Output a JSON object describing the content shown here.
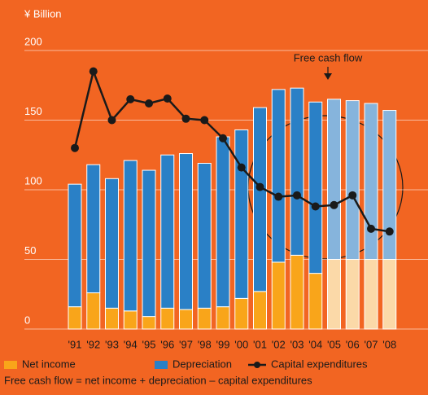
{
  "chart_data": {
    "type": "bar",
    "stacked": true,
    "y_axis_label": "¥ Billion",
    "categories": [
      "'91",
      "'92",
      "'93",
      "'94",
      "'95",
      "'96",
      "'97",
      "'98",
      "'99",
      "'00",
      "'01",
      "'02",
      "'03",
      "'04",
      "'05",
      "'06",
      "'07",
      "'08"
    ],
    "series": [
      {
        "name": "Net income",
        "color": "#f9a51a",
        "colors": [
          "#f9a51a",
          "#f9a51a",
          "#f9a51a",
          "#f9a51a",
          "#f9a51a",
          "#f9a51a",
          "#f9a51a",
          "#f9a51a",
          "#f9a51a",
          "#f9a51a",
          "#f9a51a",
          "#f9a51a",
          "#f9a51a",
          "#f9a51a",
          "#fbd9a8",
          "#fbd9a8",
          "#fbd9a8",
          "#fbd9a8"
        ],
        "values": [
          16,
          26,
          15,
          13,
          9,
          15,
          14,
          15,
          16,
          22,
          27,
          48,
          53,
          40,
          50,
          50,
          50,
          50
        ]
      },
      {
        "name": "Depreciation",
        "color": "#2a80c6",
        "colors": [
          "#2a80c6",
          "#2a80c6",
          "#2a80c6",
          "#2a80c6",
          "#2a80c6",
          "#2a80c6",
          "#2a80c6",
          "#2a80c6",
          "#2a80c6",
          "#2a80c6",
          "#2a80c6",
          "#2a80c6",
          "#2a80c6",
          "#2a80c6",
          "#86b4dc",
          "#86b4dc",
          "#86b4dc",
          "#86b4dc"
        ],
        "values": [
          88,
          92,
          93,
          108,
          105,
          110,
          112,
          104,
          122,
          121,
          132,
          124,
          120,
          123,
          115,
          114,
          112,
          107
        ]
      },
      {
        "name": "Capital expenditures",
        "type": "line",
        "color": "#1a1a1a",
        "values": [
          130,
          185,
          150,
          165,
          162,
          165.5,
          151,
          150,
          137,
          116,
          102,
          95,
          96,
          88,
          89,
          96,
          72,
          70
        ]
      }
    ],
    "ylim": [
      0,
      200
    ],
    "yticks": [
      0,
      50,
      100,
      150,
      200
    ],
    "grid": true,
    "annotation": "Free cash flow",
    "footnote": "Free cash flow = net income + depreciation – capital expenditures"
  }
}
